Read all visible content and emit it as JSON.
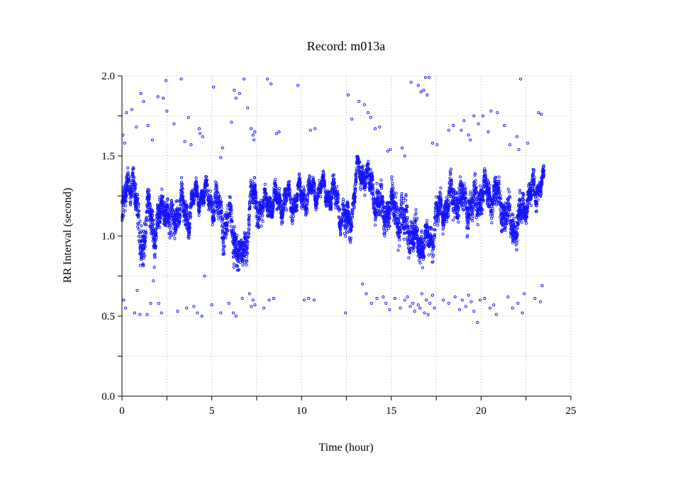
{
  "chart_data": {
    "type": "scatter",
    "title": "Record:  m013a",
    "xlabel": "Time (hour)",
    "ylabel": "RR Interval (second)",
    "xlim": [
      0,
      25
    ],
    "ylim": [
      0,
      2.0
    ],
    "x_ticks": [
      "0",
      "5",
      "10",
      "15",
      "20",
      "25"
    ],
    "y_ticks": [
      "0.0",
      "0.5",
      "1.0",
      "1.5",
      "2.0"
    ],
    "grid": true,
    "marker": "hollow-circle",
    "colors": {
      "points": "#1414ff"
    },
    "series": [
      {
        "trend": {
          "x": [
            0.0,
            0.3,
            0.6,
            0.9,
            1.2,
            1.5,
            1.8,
            2.1,
            2.4,
            2.7,
            3.0,
            3.3,
            3.6,
            3.9,
            4.2,
            4.5,
            4.8,
            5.1,
            5.4,
            5.7,
            6.0,
            6.3,
            6.6,
            6.9,
            7.2,
            7.5,
            7.8,
            8.1,
            8.4,
            8.7,
            9.0,
            9.5,
            10.0,
            10.5,
            11.0,
            11.5,
            12.0,
            12.5,
            12.8,
            13.1,
            13.5,
            14.0,
            14.5,
            15.0,
            15.5,
            16.0,
            16.3,
            16.6,
            16.9,
            17.2,
            17.5,
            18.0,
            18.5,
            19.0,
            19.5,
            20.0,
            20.5,
            21.0,
            21.5,
            22.0,
            22.5,
            22.9,
            23.3,
            23.5
          ],
          "center": [
            1.08,
            1.32,
            1.38,
            1.05,
            0.95,
            1.18,
            1.02,
            1.12,
            1.22,
            1.05,
            1.13,
            1.2,
            1.1,
            1.2,
            1.25,
            1.27,
            1.23,
            1.21,
            1.18,
            1.05,
            1.1,
            0.98,
            0.83,
            0.95,
            1.25,
            1.2,
            1.15,
            1.22,
            1.22,
            1.2,
            1.22,
            1.22,
            1.25,
            1.27,
            1.29,
            1.27,
            1.22,
            1.05,
            1.15,
            1.4,
            1.4,
            1.27,
            1.15,
            1.18,
            1.12,
            1.05,
            0.98,
            0.96,
            0.97,
            0.95,
            1.12,
            1.18,
            1.24,
            1.22,
            1.18,
            1.27,
            1.27,
            1.22,
            1.1,
            1.05,
            1.22,
            1.27,
            1.33,
            1.3
          ],
          "spread": [
            0.18,
            0.12,
            0.12,
            0.22,
            0.2,
            0.13,
            0.18,
            0.15,
            0.12,
            0.2,
            0.16,
            0.12,
            0.15,
            0.1,
            0.07,
            0.07,
            0.07,
            0.12,
            0.15,
            0.18,
            0.15,
            0.2,
            0.15,
            0.18,
            0.12,
            0.15,
            0.12,
            0.1,
            0.1,
            0.1,
            0.1,
            0.1,
            0.09,
            0.08,
            0.07,
            0.08,
            0.12,
            0.17,
            0.15,
            0.1,
            0.1,
            0.15,
            0.18,
            0.17,
            0.2,
            0.2,
            0.16,
            0.14,
            0.12,
            0.13,
            0.14,
            0.12,
            0.16,
            0.16,
            0.17,
            0.16,
            0.15,
            0.15,
            0.18,
            0.16,
            0.1,
            0.12,
            0.1,
            0.1
          ]
        },
        "outliers": [
          [
            0.05,
            1.63
          ],
          [
            0.15,
            1.58
          ],
          [
            0.25,
            1.77
          ],
          [
            0.55,
            1.79
          ],
          [
            0.8,
            1.68
          ],
          [
            1.05,
            1.89
          ],
          [
            1.2,
            1.84
          ],
          [
            1.45,
            1.69
          ],
          [
            1.7,
            1.6
          ],
          [
            2.0,
            1.87
          ],
          [
            2.3,
            1.86
          ],
          [
            2.45,
            1.97
          ],
          [
            2.5,
            1.78
          ],
          [
            2.9,
            1.7
          ],
          [
            3.3,
            1.98
          ],
          [
            3.5,
            1.59
          ],
          [
            3.7,
            1.74
          ],
          [
            3.85,
            1.57
          ],
          [
            4.3,
            1.67
          ],
          [
            4.35,
            1.64
          ],
          [
            4.5,
            1.62
          ],
          [
            5.1,
            1.93
          ],
          [
            5.5,
            1.49
          ],
          [
            5.6,
            1.55
          ],
          [
            6.1,
            1.71
          ],
          [
            6.25,
            1.91
          ],
          [
            6.35,
            1.86
          ],
          [
            6.55,
            1.89
          ],
          [
            6.8,
            1.98
          ],
          [
            7.0,
            1.8
          ],
          [
            7.2,
            1.67
          ],
          [
            7.3,
            1.63
          ],
          [
            7.35,
            1.6
          ],
          [
            7.4,
            1.65
          ],
          [
            8.1,
            1.98
          ],
          [
            8.3,
            1.95
          ],
          [
            8.6,
            1.64
          ],
          [
            8.75,
            1.65
          ],
          [
            9.8,
            1.94
          ],
          [
            10.5,
            1.66
          ],
          [
            10.75,
            1.67
          ],
          [
            12.6,
            1.88
          ],
          [
            12.8,
            1.73
          ],
          [
            13.2,
            1.84
          ],
          [
            13.5,
            1.82
          ],
          [
            13.7,
            1.77
          ],
          [
            13.85,
            1.74
          ],
          [
            14.1,
            1.67
          ],
          [
            14.35,
            1.68
          ],
          [
            14.8,
            1.53
          ],
          [
            14.95,
            1.54
          ],
          [
            15.6,
            1.55
          ],
          [
            15.75,
            1.5
          ],
          [
            16.1,
            1.96
          ],
          [
            16.5,
            1.94
          ],
          [
            16.65,
            1.9
          ],
          [
            16.8,
            1.91
          ],
          [
            16.9,
            1.99
          ],
          [
            17.0,
            1.88
          ],
          [
            17.1,
            1.99
          ],
          [
            17.3,
            1.58
          ],
          [
            17.55,
            1.57
          ],
          [
            18.2,
            1.66
          ],
          [
            18.45,
            1.69
          ],
          [
            18.9,
            1.66
          ],
          [
            19.05,
            1.72
          ],
          [
            19.3,
            1.63
          ],
          [
            19.4,
            1.6
          ],
          [
            19.6,
            1.75
          ],
          [
            19.85,
            1.7
          ],
          [
            20.1,
            1.75
          ],
          [
            20.4,
            1.65
          ],
          [
            20.55,
            1.78
          ],
          [
            20.9,
            1.77
          ],
          [
            21.3,
            1.69
          ],
          [
            21.6,
            1.57
          ],
          [
            22.0,
            1.62
          ],
          [
            22.1,
            1.54
          ],
          [
            22.2,
            1.98
          ],
          [
            22.6,
            1.58
          ],
          [
            23.2,
            1.77
          ],
          [
            23.35,
            1.76
          ],
          [
            0.1,
            0.6
          ],
          [
            0.2,
            0.55
          ],
          [
            0.7,
            0.52
          ],
          [
            0.85,
            0.66
          ],
          [
            1.0,
            0.51
          ],
          [
            1.4,
            0.51
          ],
          [
            1.6,
            0.58
          ],
          [
            1.75,
            0.72
          ],
          [
            2.05,
            0.58
          ],
          [
            2.2,
            0.52
          ],
          [
            3.1,
            0.53
          ],
          [
            3.6,
            0.55
          ],
          [
            4.0,
            0.56
          ],
          [
            4.2,
            0.52
          ],
          [
            4.45,
            0.5
          ],
          [
            4.6,
            0.75
          ],
          [
            5.0,
            0.57
          ],
          [
            5.5,
            0.52
          ],
          [
            5.95,
            0.58
          ],
          [
            6.2,
            0.52
          ],
          [
            6.35,
            0.5
          ],
          [
            6.7,
            0.61
          ],
          [
            7.1,
            0.64
          ],
          [
            7.2,
            0.56
          ],
          [
            7.3,
            0.6
          ],
          [
            7.4,
            0.57
          ],
          [
            7.9,
            0.55
          ],
          [
            8.2,
            0.6
          ],
          [
            8.45,
            0.61
          ],
          [
            10.15,
            0.6
          ],
          [
            10.4,
            0.61
          ],
          [
            10.7,
            0.6
          ],
          [
            12.45,
            0.52
          ],
          [
            13.4,
            0.7
          ],
          [
            13.6,
            0.64
          ],
          [
            13.9,
            0.58
          ],
          [
            14.2,
            0.61
          ],
          [
            14.55,
            0.62
          ],
          [
            14.7,
            0.58
          ],
          [
            14.9,
            0.54
          ],
          [
            15.2,
            0.61
          ],
          [
            15.5,
            0.55
          ],
          [
            15.75,
            0.6
          ],
          [
            15.9,
            0.62
          ],
          [
            16.05,
            0.56
          ],
          [
            16.2,
            0.58
          ],
          [
            16.3,
            0.53
          ],
          [
            16.5,
            0.57
          ],
          [
            16.6,
            0.55
          ],
          [
            16.7,
            0.64
          ],
          [
            16.85,
            0.52
          ],
          [
            16.95,
            0.6
          ],
          [
            17.05,
            0.51
          ],
          [
            17.15,
            0.58
          ],
          [
            17.3,
            0.63
          ],
          [
            17.4,
            0.55
          ],
          [
            17.9,
            0.6
          ],
          [
            18.2,
            0.58
          ],
          [
            18.55,
            0.62
          ],
          [
            18.8,
            0.54
          ],
          [
            18.95,
            0.6
          ],
          [
            19.15,
            0.56
          ],
          [
            19.3,
            0.63
          ],
          [
            19.45,
            0.59
          ],
          [
            19.6,
            0.53
          ],
          [
            19.8,
            0.46
          ],
          [
            19.95,
            0.6
          ],
          [
            20.2,
            0.61
          ],
          [
            20.5,
            0.55
          ],
          [
            20.7,
            0.57
          ],
          [
            20.85,
            0.51
          ],
          [
            21.5,
            0.62
          ],
          [
            21.75,
            0.55
          ],
          [
            22.05,
            0.58
          ],
          [
            22.3,
            0.52
          ],
          [
            22.4,
            0.64
          ],
          [
            23.0,
            0.61
          ],
          [
            23.3,
            0.59
          ],
          [
            23.4,
            0.69
          ]
        ]
      }
    ]
  }
}
